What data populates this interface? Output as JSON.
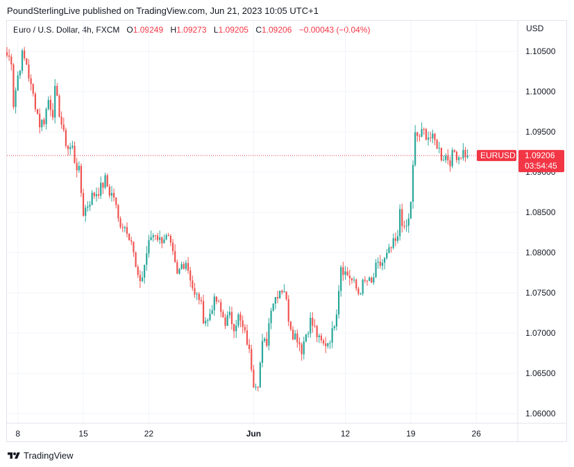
{
  "header": {
    "published_line": "PoundSterlingLive published on TradingView.com, Jun 21, 2023 10:05 UTC+1"
  },
  "legend": {
    "symbol": "Euro / U.S. Dollar, 4h, FXCM",
    "open_label": "O",
    "open": "1.09249",
    "high_label": "H",
    "high": "1.09273",
    "low_label": "L",
    "low": "1.09205",
    "close_label": "C",
    "close": "1.09206",
    "change": "−0.00043 (−0.04%)"
  },
  "price_tag": {
    "symbol": "EURUSD",
    "price": "1.09206",
    "countdown": "03:54:45"
  },
  "footer": {
    "brand": "TradingView"
  },
  "colors": {
    "up": "#26a69a",
    "down": "#ef5350",
    "grid": "#f0f3fa",
    "tag": "#f23645"
  },
  "chart_data": {
    "type": "candlestick",
    "currency_label": "USD",
    "y_ticks": [
      "1.10500",
      "1.10000",
      "1.09500",
      "1.09000",
      "1.08500",
      "1.08000",
      "1.07500",
      "1.07000",
      "1.06500",
      "1.06000"
    ],
    "y_tick_values": [
      1.105,
      1.1,
      1.095,
      1.09,
      1.085,
      1.08,
      1.075,
      1.07,
      1.065,
      1.06
    ],
    "ylim": [
      1.0588,
      1.1088
    ],
    "x_ticks": [
      {
        "label": "8",
        "index": 5
      },
      {
        "label": "15",
        "index": 35
      },
      {
        "label": "22",
        "index": 65
      },
      {
        "label": "Jun",
        "index": 113
      },
      {
        "label": "12",
        "index": 155
      },
      {
        "label": "19",
        "index": 185
      },
      {
        "label": "26",
        "index": 215
      }
    ],
    "x_range": [
      0,
      234
    ],
    "current_price": 1.09206,
    "close_path": [
      [
        0,
        1.1045
      ],
      [
        2,
        1.104
      ],
      [
        3,
        1.0985
      ],
      [
        5,
        1.102
      ],
      [
        7,
        1.1045
      ],
      [
        9,
        1.1035
      ],
      [
        11,
        1.1005
      ],
      [
        13,
        1.0985
      ],
      [
        15,
        1.096
      ],
      [
        17,
        1.0965
      ],
      [
        19,
        1.099
      ],
      [
        21,
        1.0975
      ],
      [
        22,
        1.1
      ],
      [
        24,
        1.0975
      ],
      [
        26,
        1.0945
      ],
      [
        28,
        1.093
      ],
      [
        30,
        1.093
      ],
      [
        31,
        1.0915
      ],
      [
        33,
        1.09
      ],
      [
        35,
        1.085
      ],
      [
        37,
        1.086
      ],
      [
        39,
        1.087
      ],
      [
        41,
        1.0875
      ],
      [
        43,
        1.088
      ],
      [
        45,
        1.089
      ],
      [
        47,
        1.0875
      ],
      [
        49,
        1.087
      ],
      [
        51,
        1.084
      ],
      [
        53,
        1.0835
      ],
      [
        55,
        1.083
      ],
      [
        57,
        1.0815
      ],
      [
        59,
        1.078
      ],
      [
        60,
        1.0765
      ],
      [
        62,
        1.077
      ],
      [
        64,
        1.08
      ],
      [
        66,
        1.082
      ],
      [
        68,
        1.0825
      ],
      [
        70,
        1.0815
      ],
      [
        72,
        1.082
      ],
      [
        74,
        1.0815
      ],
      [
        76,
        1.0795
      ],
      [
        78,
        1.077
      ],
      [
        80,
        1.0785
      ],
      [
        82,
        1.079
      ],
      [
        84,
        1.077
      ],
      [
        86,
        1.0745
      ],
      [
        88,
        1.0745
      ],
      [
        90,
        1.072
      ],
      [
        92,
        1.0715
      ],
      [
        94,
        1.0735
      ],
      [
        96,
        1.074
      ],
      [
        98,
        1.0725
      ],
      [
        100,
        1.0715
      ],
      [
        102,
        1.072
      ],
      [
        104,
        1.071
      ],
      [
        106,
        1.072
      ],
      [
        108,
        1.0705
      ],
      [
        110,
        1.069
      ],
      [
        112,
        1.066
      ],
      [
        113,
        1.064
      ],
      [
        115,
        1.064
      ],
      [
        117,
        1.0685
      ],
      [
        119,
        1.069
      ],
      [
        121,
        1.0735
      ],
      [
        123,
        1.0745
      ],
      [
        125,
        1.0755
      ],
      [
        127,
        1.0755
      ],
      [
        129,
        1.072
      ],
      [
        131,
        1.07
      ],
      [
        133,
        1.0695
      ],
      [
        135,
        1.068
      ],
      [
        137,
        1.07
      ],
      [
        139,
        1.0715
      ],
      [
        141,
        1.0705
      ],
      [
        143,
        1.069
      ],
      [
        145,
        1.0685
      ],
      [
        147,
        1.069
      ],
      [
        149,
        1.07
      ],
      [
        151,
        1.073
      ],
      [
        153,
        1.0785
      ],
      [
        155,
        1.0775
      ],
      [
        157,
        1.077
      ],
      [
        159,
        1.076
      ],
      [
        161,
        1.075
      ],
      [
        163,
        1.076
      ],
      [
        165,
        1.0765
      ],
      [
        167,
        1.076
      ],
      [
        169,
        1.078
      ],
      [
        171,
        1.0785
      ],
      [
        173,
        1.079
      ],
      [
        175,
        1.08
      ],
      [
        177,
        1.081
      ],
      [
        179,
        1.0815
      ],
      [
        180,
        1.0855
      ],
      [
        182,
        1.0825
      ],
      [
        184,
        1.084
      ],
      [
        185,
        1.0865
      ],
      [
        187,
        1.0945
      ],
      [
        189,
        1.0945
      ],
      [
        191,
        1.095
      ],
      [
        193,
        1.0945
      ],
      [
        195,
        1.094
      ],
      [
        197,
        1.0935
      ],
      [
        199,
        1.092
      ],
      [
        201,
        1.092
      ],
      [
        203,
        1.0915
      ],
      [
        205,
        1.0925
      ],
      [
        207,
        1.092
      ],
      [
        209,
        1.0925
      ],
      [
        211,
        1.09206
      ]
    ]
  }
}
